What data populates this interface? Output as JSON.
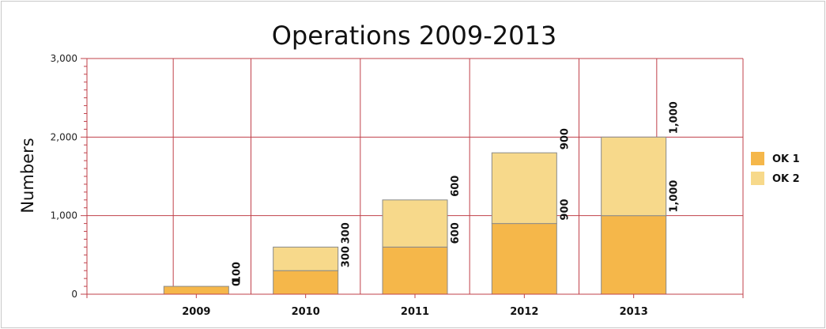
{
  "chart_data": {
    "type": "bar",
    "stacked": true,
    "title": "Operations 2009-2013",
    "xlabel": "",
    "ylabel": "Numbers",
    "categories": [
      "2009",
      "2010",
      "2011",
      "2012",
      "2013"
    ],
    "ylim": [
      0,
      3000
    ],
    "yticks": [
      {
        "value": 0,
        "label": "0"
      },
      {
        "value": 1000,
        "label": "1,000"
      },
      {
        "value": 2000,
        "label": "2,000"
      },
      {
        "value": 3000,
        "label": "3,000"
      }
    ],
    "series": [
      {
        "name": "OK 1",
        "color": "#F5B74A",
        "values": [
          100,
          300,
          600,
          900,
          1000
        ],
        "labels": [
          "100",
          "300",
          "600",
          "900",
          "1,000"
        ]
      },
      {
        "name": "OK 2",
        "color": "#F7D98B",
        "values": [
          0,
          300,
          600,
          900,
          1000
        ],
        "labels": [
          "0",
          "300",
          "600",
          "900",
          "1,000"
        ]
      }
    ],
    "grid": true,
    "grid_color": "#C0404A",
    "legend_position": "right"
  }
}
